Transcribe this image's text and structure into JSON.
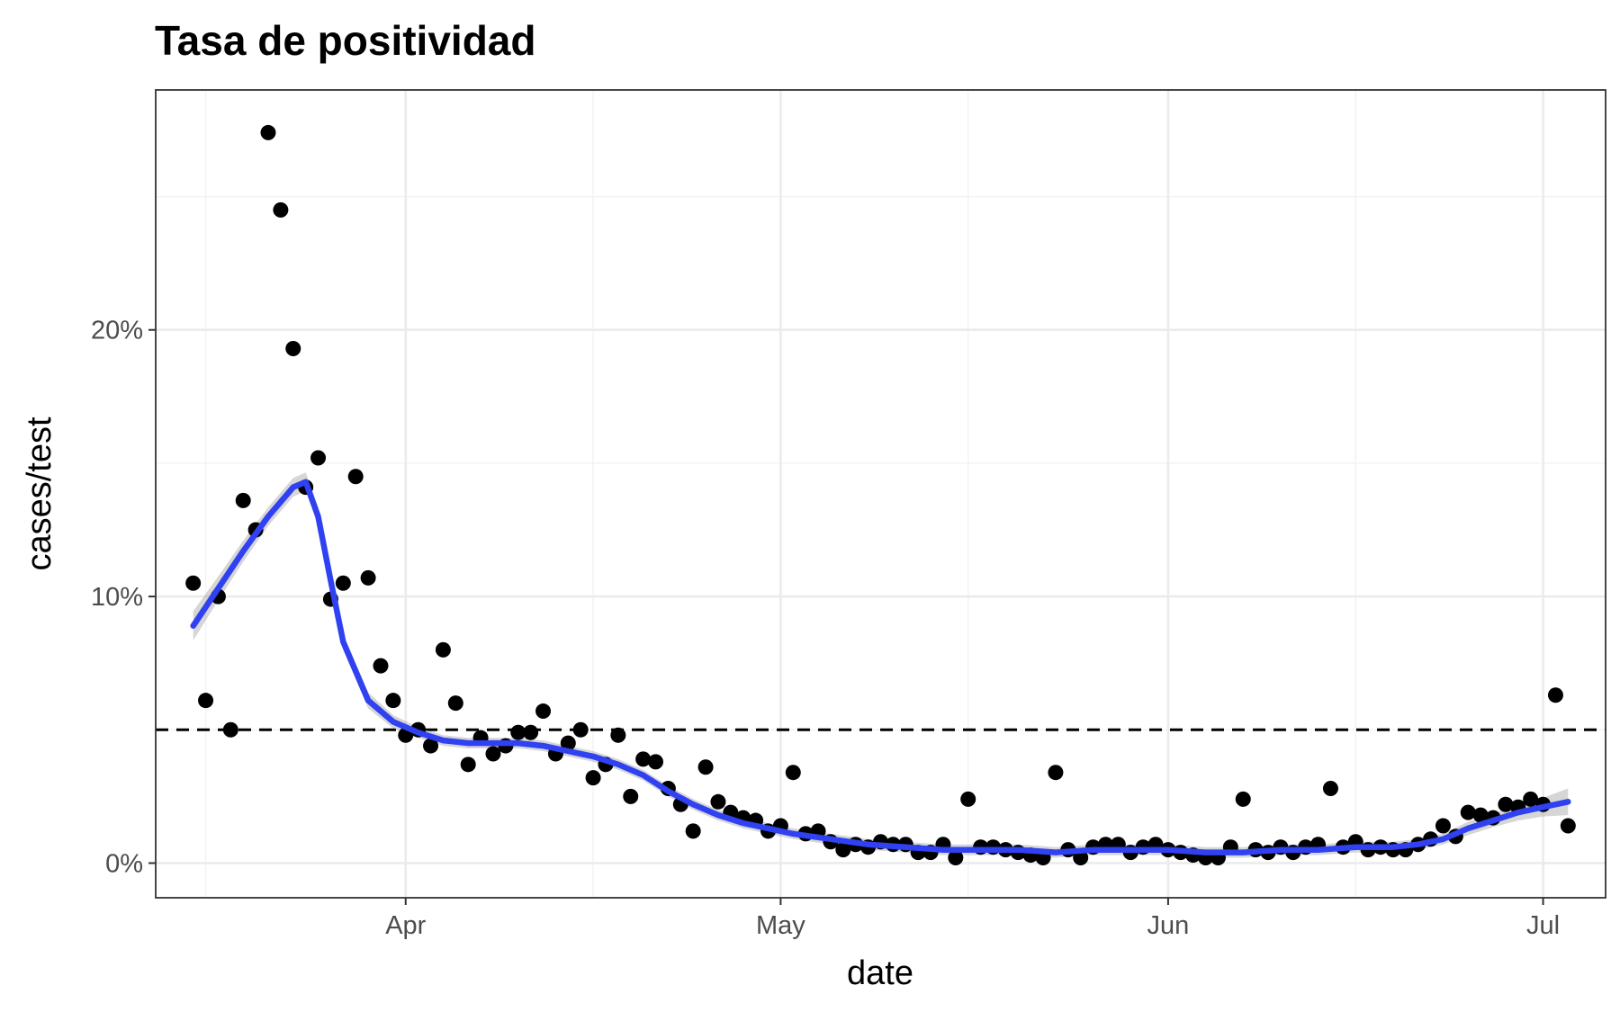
{
  "chart_data": {
    "type": "scatter",
    "title": "Tasa de positividad",
    "xlabel": "date",
    "ylabel": "cases/test",
    "x_type": "date",
    "xlim": [
      "2020-03-12",
      "2020-07-06"
    ],
    "ylim": [
      -1.3,
      29.0
    ],
    "x_ticks": [
      {
        "date": "2020-04-01",
        "label": "Apr"
      },
      {
        "date": "2020-05-01",
        "label": "May"
      },
      {
        "date": "2020-06-01",
        "label": "Jun"
      },
      {
        "date": "2020-07-01",
        "label": "Jul"
      }
    ],
    "x_minor_dates": [
      "2020-03-16",
      "2020-04-16",
      "2020-05-16",
      "2020-06-16"
    ],
    "y_ticks": [
      {
        "value": 0,
        "label": "0%"
      },
      {
        "value": 10,
        "label": "10%"
      },
      {
        "value": 20,
        "label": "20%"
      }
    ],
    "y_minor_values": [
      5,
      15,
      25
    ],
    "reference_line": {
      "value": 5,
      "style": "dashed",
      "color": "#000000"
    },
    "grid": true,
    "points": {
      "color": "#000000",
      "x": [
        "2020-03-15",
        "2020-03-16",
        "2020-03-17",
        "2020-03-18",
        "2020-03-19",
        "2020-03-20",
        "2020-03-21",
        "2020-03-22",
        "2020-03-23",
        "2020-03-24",
        "2020-03-25",
        "2020-03-26",
        "2020-03-27",
        "2020-03-28",
        "2020-03-29",
        "2020-03-30",
        "2020-03-31",
        "2020-04-01",
        "2020-04-02",
        "2020-04-03",
        "2020-04-04",
        "2020-04-05",
        "2020-04-06",
        "2020-04-07",
        "2020-04-08",
        "2020-04-09",
        "2020-04-10",
        "2020-04-11",
        "2020-04-12",
        "2020-04-13",
        "2020-04-14",
        "2020-04-15",
        "2020-04-16",
        "2020-04-17",
        "2020-04-18",
        "2020-04-19",
        "2020-04-20",
        "2020-04-21",
        "2020-04-22",
        "2020-04-23",
        "2020-04-24",
        "2020-04-25",
        "2020-04-26",
        "2020-04-27",
        "2020-04-28",
        "2020-04-29",
        "2020-04-30",
        "2020-05-01",
        "2020-05-02",
        "2020-05-03",
        "2020-05-04",
        "2020-05-05",
        "2020-05-06",
        "2020-05-07",
        "2020-05-08",
        "2020-05-09",
        "2020-05-10",
        "2020-05-11",
        "2020-05-12",
        "2020-05-13",
        "2020-05-14",
        "2020-05-15",
        "2020-05-16",
        "2020-05-17",
        "2020-05-18",
        "2020-05-19",
        "2020-05-20",
        "2020-05-21",
        "2020-05-22",
        "2020-05-23",
        "2020-05-24",
        "2020-05-25",
        "2020-05-26",
        "2020-05-27",
        "2020-05-28",
        "2020-05-29",
        "2020-05-30",
        "2020-05-31",
        "2020-06-01",
        "2020-06-02",
        "2020-06-03",
        "2020-06-04",
        "2020-06-05",
        "2020-06-06",
        "2020-06-07",
        "2020-06-08",
        "2020-06-09",
        "2020-06-10",
        "2020-06-11",
        "2020-06-12",
        "2020-06-13",
        "2020-06-14",
        "2020-06-15",
        "2020-06-16",
        "2020-06-17",
        "2020-06-18",
        "2020-06-19",
        "2020-06-20",
        "2020-06-21",
        "2020-06-22",
        "2020-06-23",
        "2020-06-24",
        "2020-06-25",
        "2020-06-26",
        "2020-06-27",
        "2020-06-28",
        "2020-06-29",
        "2020-06-30",
        "2020-07-01",
        "2020-07-02",
        "2020-07-03"
      ],
      "y": [
        10.5,
        6.1,
        10.0,
        5.0,
        13.6,
        12.5,
        27.4,
        24.5,
        19.3,
        14.1,
        15.2,
        9.9,
        10.5,
        14.5,
        10.7,
        7.4,
        6.1,
        4.8,
        5.0,
        4.4,
        8.0,
        6.0,
        3.7,
        4.7,
        4.1,
        4.4,
        4.9,
        4.9,
        5.7,
        4.1,
        4.5,
        5.0,
        3.2,
        3.7,
        4.8,
        2.5,
        3.9,
        3.8,
        2.8,
        2.2,
        1.2,
        3.6,
        2.3,
        1.9,
        1.7,
        1.6,
        1.2,
        1.4,
        3.4,
        1.1,
        1.2,
        0.8,
        0.5,
        0.7,
        0.6,
        0.8,
        0.7,
        0.7,
        0.4,
        0.4,
        0.7,
        0.2,
        2.4,
        0.6,
        0.6,
        0.5,
        0.4,
        0.3,
        0.2,
        3.4,
        0.5,
        0.2,
        0.6,
        0.7,
        0.7,
        0.4,
        0.6,
        0.7,
        0.5,
        0.4,
        0.3,
        0.2,
        0.2,
        0.6,
        2.4,
        0.5,
        0.4,
        0.6,
        0.4,
        0.6,
        0.7,
        2.8,
        0.6,
        0.8,
        0.5,
        0.6,
        0.5,
        0.5,
        0.7,
        0.9,
        1.4,
        1.0,
        1.9,
        1.8,
        1.7,
        2.2,
        2.1,
        2.4,
        2.2,
        6.3,
        1.4
      ]
    },
    "smooth": {
      "color": "#3041f2",
      "x": [
        "2020-03-15",
        "2020-03-17",
        "2020-03-19",
        "2020-03-21",
        "2020-03-23",
        "2020-03-24",
        "2020-03-25",
        "2020-03-26",
        "2020-03-27",
        "2020-03-29",
        "2020-03-31",
        "2020-04-02",
        "2020-04-04",
        "2020-04-06",
        "2020-04-08",
        "2020-04-10",
        "2020-04-12",
        "2020-04-14",
        "2020-04-16",
        "2020-04-18",
        "2020-04-20",
        "2020-04-22",
        "2020-04-24",
        "2020-04-26",
        "2020-04-28",
        "2020-04-30",
        "2020-05-02",
        "2020-05-05",
        "2020-05-08",
        "2020-05-11",
        "2020-05-14",
        "2020-05-17",
        "2020-05-20",
        "2020-05-23",
        "2020-05-26",
        "2020-05-29",
        "2020-06-01",
        "2020-06-04",
        "2020-06-07",
        "2020-06-10",
        "2020-06-13",
        "2020-06-16",
        "2020-06-19",
        "2020-06-21",
        "2020-06-23",
        "2020-06-25",
        "2020-06-27",
        "2020-06-29",
        "2020-07-01",
        "2020-07-03"
      ],
      "y": [
        8.9,
        10.3,
        11.7,
        13.0,
        14.1,
        14.3,
        13.0,
        10.6,
        8.3,
        6.1,
        5.3,
        4.9,
        4.6,
        4.5,
        4.5,
        4.5,
        4.4,
        4.2,
        4.0,
        3.7,
        3.3,
        2.7,
        2.2,
        1.8,
        1.5,
        1.3,
        1.1,
        0.9,
        0.7,
        0.6,
        0.5,
        0.5,
        0.5,
        0.4,
        0.5,
        0.5,
        0.5,
        0.4,
        0.4,
        0.5,
        0.5,
        0.6,
        0.6,
        0.7,
        0.9,
        1.3,
        1.6,
        1.9,
        2.1,
        2.3
      ],
      "ci_halfwidth": [
        0.55,
        0.45,
        0.4,
        0.35,
        0.35,
        0.35,
        0.35,
        0.35,
        0.3,
        0.3,
        0.25,
        0.2,
        0.2,
        0.2,
        0.2,
        0.2,
        0.2,
        0.2,
        0.2,
        0.2,
        0.2,
        0.2,
        0.2,
        0.2,
        0.2,
        0.2,
        0.2,
        0.2,
        0.2,
        0.2,
        0.2,
        0.2,
        0.2,
        0.2,
        0.2,
        0.2,
        0.2,
        0.2,
        0.2,
        0.2,
        0.2,
        0.2,
        0.2,
        0.2,
        0.2,
        0.25,
        0.25,
        0.3,
        0.35,
        0.5
      ]
    }
  }
}
